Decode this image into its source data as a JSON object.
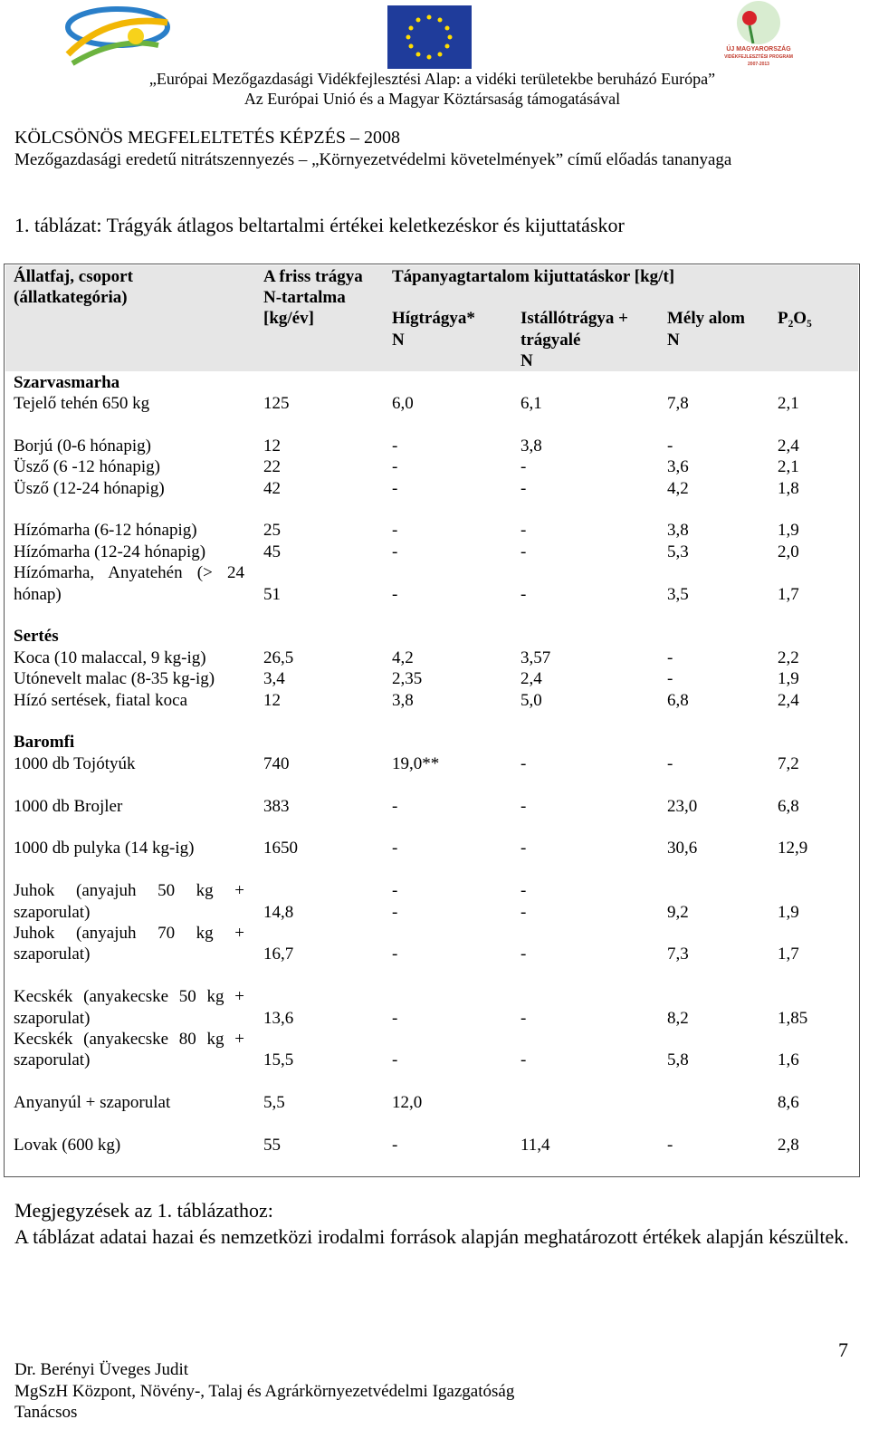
{
  "header": {
    "logo_text": [
      "ÚJ MAGYARORSZÁG",
      "VIDÉKFEJLESZTÉSI PROGRAM",
      "2007-2013"
    ],
    "lines": [
      "„Európai Mezőgazdasági Vidékfejlesztési Alap: a vidéki területekbe beruházó Európa”",
      "Az Európai Unió és a Magyar Köztársaság támogatásával"
    ],
    "title": "KÖLCSÖNÖS MEGFELELTETÉS KÉPZÉS – 2008",
    "subtitle": "Mezőgazdasági eredetű nitrátszennyezés – „Környezetvédelmi követelmények” című előadás tananyaga"
  },
  "caption": "1. táblázat: Trágyák átlagos beltartalmi értékei keletkezéskor és kijuttatáskor",
  "table": {
    "header": [
      [
        "Állatfaj, csoport",
        "A friss trágya",
        "Tápanyagtartalom kijuttatáskor [kg/t]",
        null,
        null,
        null
      ],
      [
        "(állatkategória)",
        "N-tartalma",
        null,
        null,
        null,
        null
      ],
      [
        null,
        "[kg/év]",
        "Hígtrágya*",
        "Istállótrágya +",
        "Mély alom",
        "P₂O₅"
      ],
      [
        null,
        null,
        "N",
        "trágyalé",
        "N",
        null
      ],
      [
        null,
        null,
        null,
        "N",
        null,
        null
      ]
    ],
    "groups": [
      {
        "title": "Szarvasmarha",
        "lines": [
          [
            "Tejelő tehén 650 kg",
            "125",
            "6,0",
            "6,1",
            "7,8",
            "2,1"
          ]
        ]
      },
      {
        "lines": [
          [
            "Borjú (0-6 hónapig)",
            "12",
            "-",
            "3,8",
            "-",
            "2,4"
          ],
          [
            "Üsző (6 -12 hónapig)",
            "22",
            "-",
            "-",
            "3,6",
            "2,1"
          ],
          [
            "Üsző (12-24 hónapig)",
            "42",
            "-",
            "-",
            "4,2",
            "1,8"
          ]
        ]
      },
      {
        "lines": [
          [
            "Hízómarha (6-12 hónapig)",
            "25",
            "-",
            "-",
            "3,8",
            "1,9"
          ],
          [
            "Hízómarha (12-24 hónapig)",
            "45",
            "-",
            "-",
            "5,3",
            "2,0"
          ],
          [
            "Hízómarha, Anyatehén (> 24",
            null,
            null,
            null,
            null,
            null
          ],
          [
            "hónap)",
            "51",
            "-",
            "-",
            "3,5",
            "1,7"
          ]
        ]
      },
      {
        "title": "Sertés",
        "lines": [
          [
            "Koca (10 malaccal, 9 kg-ig)",
            "26,5",
            "4,2",
            "3,57",
            "-",
            "2,2"
          ],
          [
            "Utónevelt malac (8-35 kg-ig)",
            "3,4",
            "2,35",
            "2,4",
            "-",
            "1,9"
          ],
          [
            "Hízó sertések, fiatal koca",
            "12",
            "3,8",
            "5,0",
            "6,8",
            "2,4"
          ]
        ]
      },
      {
        "title": "Baromfi",
        "lines": [
          [
            "1000 db Tojótyúk",
            "740",
            "19,0**",
            "-",
            "-",
            "7,2"
          ]
        ]
      },
      {
        "lines": [
          [
            "1000 db Brojler",
            "383",
            "-",
            "-",
            "23,0",
            "6,8"
          ]
        ]
      },
      {
        "lines": [
          [
            "1000 db pulyka (14 kg-ig)",
            "1650",
            "-",
            "-",
            "30,6",
            "12,9"
          ]
        ]
      },
      {
        "lines": [
          [
            "Juhok (anyajuh 50 kg +",
            null,
            "-",
            "-",
            null,
            null
          ],
          [
            "szaporulat)",
            "14,8",
            "-",
            "-",
            "9,2",
            "1,9"
          ],
          [
            "Juhok (anyajuh 70 kg +",
            null,
            null,
            null,
            null,
            null
          ],
          [
            "szaporulat)",
            "16,7",
            "-",
            "-",
            "7,3",
            "1,7"
          ]
        ]
      },
      {
        "lines": [
          [
            "Kecskék (anyakecske 50 kg +",
            null,
            null,
            null,
            null,
            null
          ],
          [
            "szaporulat)",
            "13,6",
            "-",
            "-",
            "8,2",
            "1,85"
          ],
          [
            "Kecskék (anyakecske 80 kg +",
            null,
            null,
            null,
            null,
            null
          ],
          [
            "szaporulat)",
            "15,5",
            "-",
            "-",
            "5,8",
            "1,6"
          ]
        ]
      },
      {
        "lines": [
          [
            "Anyanyúl + szaporulat",
            "5,5",
            "12,0",
            null,
            null,
            "8,6"
          ]
        ]
      },
      {
        "lines": [
          [
            "Lovak (600 kg)",
            "55",
            "-",
            "11,4",
            "-",
            "2,8"
          ]
        ]
      }
    ]
  },
  "notes": {
    "title": "Megjegyzések az 1. táblázathoz:",
    "text": "A táblázat adatai hazai és nemzetközi irodalmi források alapján meghatározott értékek alapján készültek."
  },
  "footer": {
    "page": "7",
    "lines": [
      "Dr. Berényi Üveges Judit",
      "MgSzH Központ, Növény-, Talaj és Agrárkörnyezetvédelmi Igazgatóság",
      "Tanácsos"
    ]
  }
}
